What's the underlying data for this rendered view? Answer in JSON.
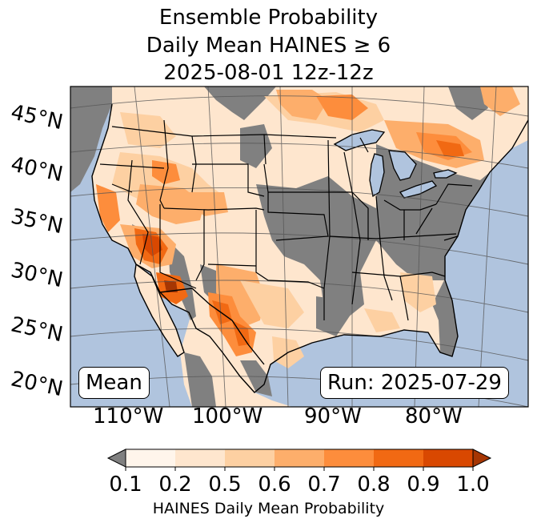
{
  "title": {
    "line1": "Ensemble Probability",
    "line2": "Daily Mean HAINES ≥ 6",
    "line3": "2025-08-01 12z-12z"
  },
  "map": {
    "latitude_labels": [
      "45°N",
      "40°N",
      "35°N",
      "30°N",
      "25°N",
      "20°N"
    ],
    "longitude_labels": [
      "110°W",
      "100°W",
      "90°W",
      "80°W"
    ],
    "stat_label": "Mean",
    "run_label": "Run: 2025-07-29",
    "colors": {
      "ocean": "#b0c4de",
      "low_value": "#808080"
    }
  },
  "colorbar": {
    "label": "HAINES Daily Mean Probability",
    "ticks": [
      "0.1",
      "0.2",
      "0.5",
      "0.6",
      "0.7",
      "0.8",
      "0.9",
      "1.0"
    ],
    "colors": [
      "#fff5eb",
      "#fee6ce",
      "#fdd0a2",
      "#fdae6b",
      "#fd8d3c",
      "#f16913",
      "#d94801",
      "#a63603"
    ],
    "under_color": "#808080"
  }
}
